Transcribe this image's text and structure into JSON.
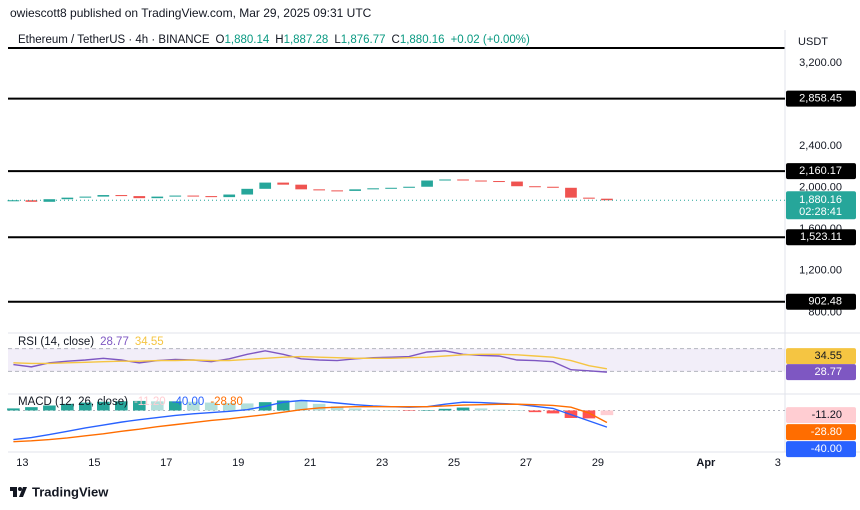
{
  "header": {
    "publisher": "owiescott8 published on TradingView.com, Mar 29, 2025 09:31 UTC"
  },
  "footer": {
    "brand": "TradingView"
  },
  "chart_data": [
    {
      "type": "candlestick",
      "title": "Ethereum / TetherUS · 4h · BINANCE",
      "currency": "USDT",
      "ohlc": [
        {
          "key": "O",
          "value": "1,880.14"
        },
        {
          "key": "H",
          "value": "1,887.28"
        },
        {
          "key": "L",
          "value": "1,876.77"
        },
        {
          "key": "C",
          "value": "1,880.16"
        }
      ],
      "change": "+0.02 (+0.00%)",
      "x": [
        12.75,
        13.25,
        13.75,
        14.25,
        14.75,
        15.25,
        15.75,
        16.25,
        16.75,
        17.25,
        17.75,
        18.25,
        18.75,
        19.25,
        19.75,
        20.25,
        20.75,
        21.25,
        21.75,
        22.25,
        22.75,
        23.25,
        23.75,
        24.25,
        24.75,
        25.25,
        25.75,
        26.25,
        26.75,
        27.25,
        27.75,
        28.25,
        28.75,
        29.25
      ],
      "open": [
        1870,
        1880,
        1865,
        1890,
        1905,
        1915,
        1930,
        1920,
        1900,
        1915,
        1925,
        1920,
        1910,
        1935,
        1990,
        2050,
        2030,
        1985,
        1975,
        1970,
        1985,
        1995,
        2000,
        2010,
        2070,
        2080,
        2070,
        2065,
        2060,
        2015,
        2010,
        2000,
        1905,
        1895
      ],
      "close": [
        1880,
        1865,
        1890,
        1905,
        1915,
        1930,
        1920,
        1900,
        1915,
        1925,
        1920,
        1910,
        1935,
        1990,
        2050,
        2030,
        1985,
        1975,
        1970,
        1985,
        1995,
        2000,
        2010,
        2070,
        2080,
        2070,
        2065,
        2060,
        2015,
        2010,
        2000,
        1905,
        1895,
        1880.16
      ],
      "up_color": "#26a69a",
      "down_color": "#ef5350",
      "xlim": [
        12.6,
        34.2
      ],
      "xticks": [
        13,
        15,
        17,
        19,
        21,
        23,
        25,
        27,
        29,
        {
          "value": 32,
          "label": "Apr"
        },
        {
          "value": 34,
          "label": "3"
        }
      ],
      "ylim": [
        630,
        3520
      ],
      "yticks": [
        {
          "value": 3200,
          "label": "3,200.00"
        },
        {
          "value": 2400,
          "label": "2,400.00"
        },
        {
          "value": 2000,
          "label": "2,000.00"
        },
        {
          "value": 1600,
          "label": "1,600.00"
        },
        {
          "value": 1200,
          "label": "1,200.00"
        },
        {
          "value": 800,
          "label": "800.00"
        }
      ],
      "levels": [
        {
          "value": 2858.45,
          "label": "2,858.45"
        },
        {
          "value": 2160.17,
          "label": "2,160.17"
        },
        {
          "value": 1523.11,
          "label": "1,523.11"
        },
        {
          "value": 902.48,
          "label": "902.48"
        }
      ],
      "last_price_label": "1,880.16",
      "countdown": "02:28:41"
    },
    {
      "type": "line",
      "title": "RSI (14, close)",
      "ylim": [
        15,
        85
      ],
      "band": [
        30,
        70
      ],
      "series": [
        {
          "color": "#7e57c2",
          "value_label": "28.77",
          "values": [
            42,
            38,
            45,
            48,
            50,
            53,
            50,
            45,
            49,
            51,
            50,
            47,
            52,
            60,
            66,
            60,
            52,
            50,
            49,
            52,
            54,
            55,
            56,
            64,
            66,
            60,
            58,
            57,
            50,
            49,
            47,
            33,
            31,
            28.77
          ]
        },
        {
          "color": "#f5c542",
          "value_label": "34.55",
          "values": [
            45,
            44,
            44,
            45,
            46,
            47,
            48,
            48,
            49,
            49,
            50,
            49,
            49,
            51,
            53,
            55,
            56,
            55,
            54,
            53,
            53,
            53,
            54,
            55,
            57,
            59,
            60,
            60,
            59,
            57,
            55,
            49,
            40,
            34.55
          ]
        }
      ]
    },
    {
      "type": "macd",
      "title": "MACD (12, 26, close)",
      "ylim": [
        -95,
        30
      ],
      "series": [
        {
          "kind": "histogram",
          "color": "#ffcdd2",
          "value_label": "-11.20",
          "values": [
            5,
            8,
            12,
            16,
            19,
            21,
            22,
            23,
            22,
            22,
            21,
            19,
            18,
            17,
            20,
            24,
            22,
            16,
            10,
            5,
            2,
            0,
            -1,
            0,
            4,
            7,
            5,
            2,
            0,
            -4,
            -7,
            -18,
            -19,
            -11.2
          ]
        },
        {
          "kind": "line",
          "color": "#2962ff",
          "value_label": "-40.00",
          "values": [
            -70,
            -65,
            -58,
            -50,
            -42,
            -35,
            -28,
            -22,
            -17,
            -12,
            -8,
            -5,
            -2,
            2,
            10,
            20,
            24,
            22,
            18,
            14,
            11,
            9,
            8,
            9,
            15,
            20,
            19,
            17,
            15,
            10,
            5,
            -10,
            -25,
            -40
          ]
        },
        {
          "kind": "line",
          "color": "#ff6d00",
          "value_label": "-28.80",
          "values": [
            -75,
            -73,
            -70,
            -66,
            -61,
            -56,
            -50,
            -45,
            -39,
            -34,
            -29,
            -24,
            -20,
            -15,
            -10,
            -4,
            2,
            6,
            8,
            9,
            9,
            9,
            9,
            9,
            11,
            13,
            14,
            15,
            15,
            14,
            12,
            8,
            -6,
            -28.8
          ]
        }
      ]
    }
  ]
}
